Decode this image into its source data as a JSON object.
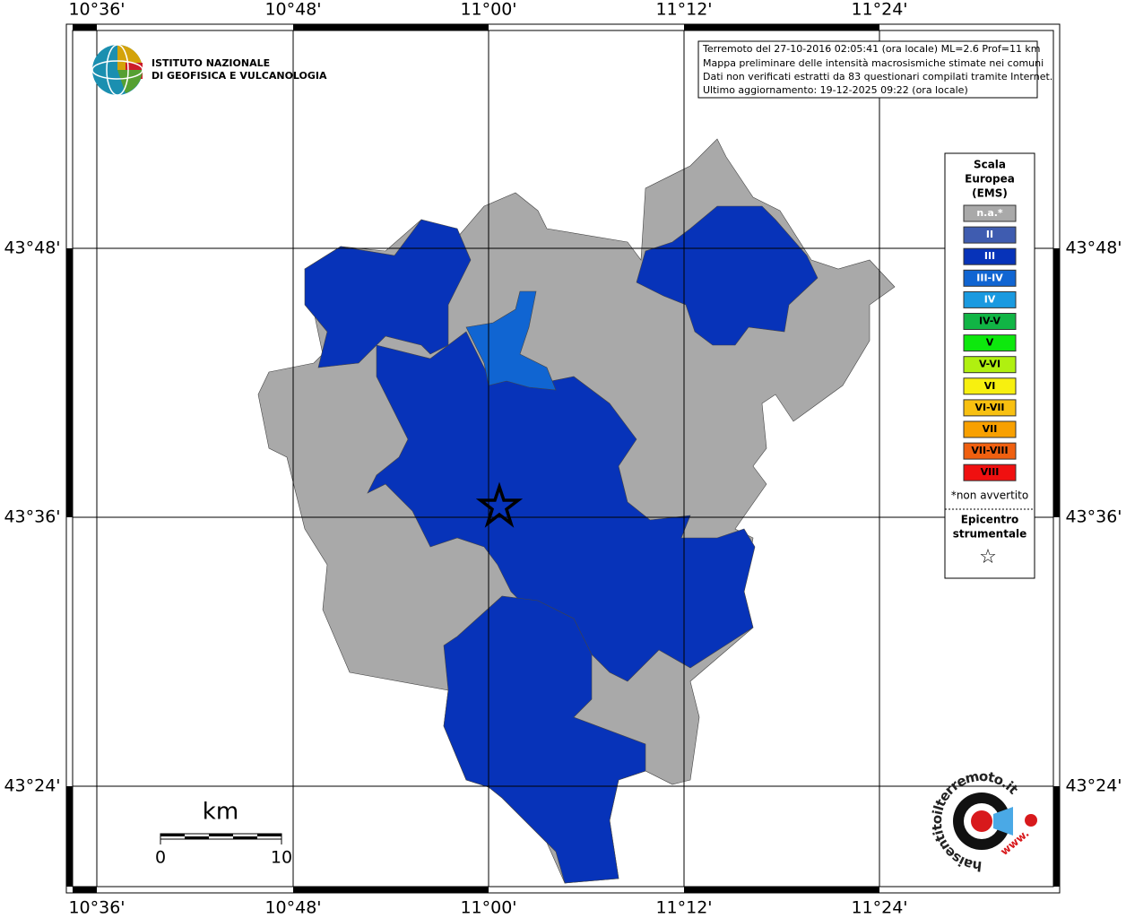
{
  "header": {
    "logo_lines": [
      "ISTITUTO NAZIONALE",
      "DI GEOFISICA E VULCANOLOGIA"
    ],
    "info_lines": [
      "Terremoto del 27-10-2016 02:05:41 (ora locale) ML=2.6 Prof=11 km",
      "Mappa preliminare delle intensità macrosismiche stimate nei comuni",
      "Dati non verificati estratti da 83 questionari compilati tramite Internet.",
      "Ultimo aggiornamento: 19-12-2025 09:22 (ora locale)"
    ]
  },
  "map": {
    "lon_labels": [
      "10°36'",
      "10°48'",
      "11°00'",
      "11°12'",
      "11°24'"
    ],
    "lat_labels": [
      "43°48'",
      "43°36'",
      "43°24'"
    ]
  },
  "legend": {
    "title_lines": [
      "Scala",
      "Europea",
      "(EMS)"
    ],
    "classes": [
      {
        "label": "n.a.*",
        "color": "#a9a9a9",
        "text_color": "#ffffff"
      },
      {
        "label": "II",
        "color": "#3f5cb0",
        "text_color": "#ffffff"
      },
      {
        "label": "III",
        "color": "#0733b9",
        "text_color": "#ffffff"
      },
      {
        "label": "III-IV",
        "color": "#1065d2",
        "text_color": "#ffffff"
      },
      {
        "label": "IV",
        "color": "#1a9ae0",
        "text_color": "#ffffff"
      },
      {
        "label": "IV-V",
        "color": "#11b545",
        "text_color": "#000000"
      },
      {
        "label": "V",
        "color": "#0de80d",
        "text_color": "#000000"
      },
      {
        "label": "V-VI",
        "color": "#b0f010",
        "text_color": "#000000"
      },
      {
        "label": "VI",
        "color": "#f7f00f",
        "text_color": "#000000"
      },
      {
        "label": "VI-VII",
        "color": "#f8c010",
        "text_color": "#000000"
      },
      {
        "label": "VII",
        "color": "#f8a000",
        "text_color": "#000000"
      },
      {
        "label": "VII-VIII",
        "color": "#f06010",
        "text_color": "#000000"
      },
      {
        "label": "VIII",
        "color": "#f01010",
        "text_color": "#000000"
      }
    ],
    "note": "*non avvertito",
    "epicenter_lines": [
      "Epicentro",
      "strumentale"
    ],
    "epicenter_symbol": "☆"
  },
  "scale_bar": {
    "unit": "km",
    "labels": [
      "0",
      "10"
    ]
  },
  "footer_logo": {
    "text": "haisentitoilterremoto.it",
    "prefix": "www."
  }
}
